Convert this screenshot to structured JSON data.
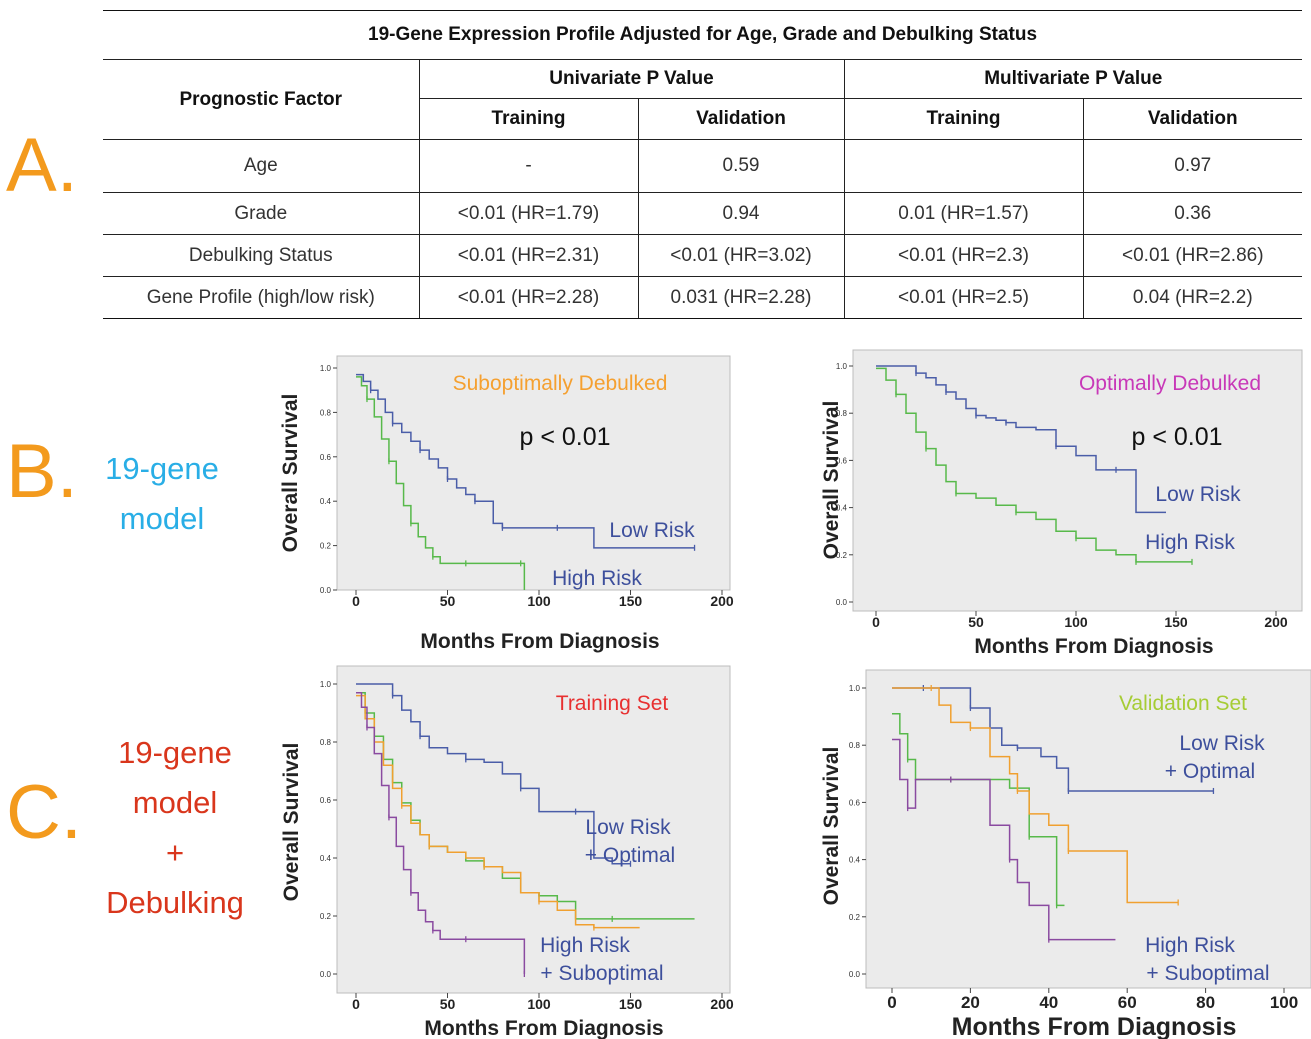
{
  "table": {
    "title": "19-Gene Expression Profile Adjusted for Age, Grade and Debulking Status",
    "factor_header": "Prognostic Factor",
    "group_headers": [
      "Univariate P Value",
      "Multivariate P Value"
    ],
    "sub_headers": [
      "Training",
      "Validation",
      "Training",
      "Validation"
    ],
    "rows": [
      {
        "factor": "Age",
        "values": [
          "-",
          "0.59",
          "",
          "0.97"
        ]
      },
      {
        "factor": "Grade",
        "values": [
          "<0.01 (HR=1.79)",
          "0.94",
          "0.01 (HR=1.57)",
          "0.36"
        ]
      },
      {
        "factor": "Debulking Status",
        "values": [
          "<0.01 (HR=2.31)",
          "<0.01 (HR=3.02)",
          "<0.01 (HR=2.3)",
          "<0.01 (HR=2.86)"
        ]
      },
      {
        "factor": "Gene Profile (high/low risk)",
        "values": [
          "<0.01 (HR=2.28)",
          "0.031 (HR=2.28)",
          "<0.01 (HR=2.5)",
          "0.04 (HR=2.2)"
        ]
      }
    ]
  },
  "labels": {
    "panel_a": "A.",
    "panel_b": "B.",
    "panel_c": "C.",
    "model_b": [
      "19-gene",
      "model"
    ],
    "model_c": [
      "19-",
      "gene",
      "model",
      "+",
      "Debulking"
    ]
  },
  "colors": {
    "panel_letter": "#f39a1d",
    "model_b": "#29aee6",
    "model_c": "#d9361c",
    "low_risk": "#4a5da8",
    "high_risk": "#57b94a",
    "low_opt": "#4a5da8",
    "high_opt": "#57b94a",
    "high_subopt": "#8a4aa0",
    "low_subopt": "#f0a030",
    "plot_bg": "#ebebeb"
  },
  "chart_data": [
    {
      "type": "line",
      "title": "Suboptimally Debulked",
      "title_color": "#f5a030",
      "annotation": "p < 0.01",
      "xlabel": "Months From Diagnosis",
      "ylabel": "Overall Survival",
      "xticks": [
        0,
        50,
        100,
        150,
        200
      ],
      "yticks": [
        "0.0",
        "0.2",
        "0.4",
        "0.6",
        "0.8",
        "1.0"
      ],
      "xlim": [
        0,
        200
      ],
      "ylim": [
        0,
        1
      ],
      "series": [
        {
          "name": "Low Risk",
          "color": "#4a5da8",
          "x": [
            0,
            4,
            8,
            12,
            16,
            20,
            25,
            30,
            35,
            40,
            45,
            50,
            55,
            60,
            65,
            70,
            75,
            80,
            90,
            100,
            110,
            130,
            150,
            185
          ],
          "y": [
            0.97,
            0.94,
            0.9,
            0.86,
            0.8,
            0.75,
            0.71,
            0.67,
            0.63,
            0.59,
            0.55,
            0.5,
            0.46,
            0.43,
            0.4,
            0.4,
            0.3,
            0.28,
            0.28,
            0.28,
            0.28,
            0.19,
            0.19,
            0.19
          ]
        },
        {
          "name": "High Risk",
          "color": "#57b94a",
          "x": [
            0,
            3,
            6,
            10,
            14,
            18,
            22,
            26,
            30,
            34,
            38,
            42,
            46,
            50,
            60,
            70,
            80,
            90,
            92
          ],
          "y": [
            0.96,
            0.92,
            0.86,
            0.78,
            0.68,
            0.58,
            0.48,
            0.38,
            0.3,
            0.24,
            0.19,
            0.15,
            0.12,
            0.12,
            0.12,
            0.12,
            0.12,
            0.12,
            0.0
          ]
        }
      ],
      "series_labels": [
        "Low Risk",
        "High Risk"
      ]
    },
    {
      "type": "line",
      "title": "Optimally Debulked",
      "title_color": "#c838b8",
      "annotation": "p < 0.01",
      "xlabel": "Months From Diagnosis",
      "ylabel": "Overall Survival",
      "xticks": [
        0,
        50,
        100,
        150,
        200
      ],
      "yticks": [
        "0.0",
        "0.2",
        "0.4",
        "0.6",
        "0.8",
        "1.0"
      ],
      "xlim": [
        0,
        200
      ],
      "ylim": [
        0,
        1
      ],
      "series": [
        {
          "name": "Low Risk",
          "color": "#4a5da8",
          "x": [
            0,
            10,
            20,
            25,
            30,
            35,
            40,
            45,
            50,
            55,
            60,
            65,
            70,
            80,
            90,
            100,
            110,
            120,
            130,
            145
          ],
          "y": [
            1.0,
            1.0,
            0.97,
            0.95,
            0.92,
            0.89,
            0.86,
            0.82,
            0.79,
            0.78,
            0.77,
            0.76,
            0.74,
            0.73,
            0.66,
            0.62,
            0.56,
            0.56,
            0.38,
            0.38
          ]
        },
        {
          "name": "High Risk",
          "color": "#57b94a",
          "x": [
            0,
            5,
            10,
            15,
            20,
            25,
            30,
            35,
            40,
            50,
            60,
            70,
            80,
            90,
            100,
            110,
            120,
            130,
            140,
            150,
            158
          ],
          "y": [
            0.99,
            0.94,
            0.88,
            0.8,
            0.72,
            0.65,
            0.58,
            0.51,
            0.46,
            0.44,
            0.41,
            0.38,
            0.35,
            0.3,
            0.27,
            0.22,
            0.2,
            0.17,
            0.17,
            0.17,
            0.17
          ]
        }
      ],
      "series_labels": [
        "Low Risk",
        "High Risk"
      ]
    },
    {
      "type": "line",
      "title": "Training Set",
      "title_color": "#e83030",
      "xlabel": "Months From Diagnosis",
      "ylabel": "Overall Survival",
      "xticks": [
        0,
        50,
        100,
        150,
        200
      ],
      "yticks": [
        "0.0",
        "0.2",
        "0.4",
        "0.6",
        "0.8",
        "1.0"
      ],
      "xlim": [
        0,
        200
      ],
      "ylim": [
        0,
        1
      ],
      "series": [
        {
          "name": "Low Risk + Optimal",
          "color": "#4a5da8",
          "x": [
            0,
            15,
            20,
            25,
            30,
            35,
            40,
            50,
            60,
            70,
            80,
            90,
            100,
            110,
            120,
            130,
            140,
            150
          ],
          "y": [
            1.0,
            1.0,
            0.96,
            0.91,
            0.87,
            0.82,
            0.78,
            0.76,
            0.74,
            0.73,
            0.69,
            0.64,
            0.56,
            0.56,
            0.56,
            0.4,
            0.38,
            0.38
          ]
        },
        {
          "name": "High Risk + Optimal",
          "color": "#57b94a",
          "x": [
            0,
            5,
            10,
            15,
            20,
            25,
            30,
            35,
            40,
            50,
            60,
            70,
            80,
            90,
            100,
            110,
            120,
            140,
            160,
            185
          ],
          "y": [
            0.97,
            0.9,
            0.82,
            0.74,
            0.66,
            0.59,
            0.53,
            0.48,
            0.44,
            0.42,
            0.39,
            0.37,
            0.33,
            0.28,
            0.27,
            0.25,
            0.19,
            0.19,
            0.19,
            0.19
          ]
        },
        {
          "name": "Low Risk + Suboptimal",
          "color": "#f0a030",
          "x": [
            0,
            5,
            10,
            15,
            20,
            25,
            30,
            35,
            40,
            50,
            60,
            70,
            80,
            90,
            100,
            110,
            120,
            130,
            140,
            155
          ],
          "y": [
            0.96,
            0.88,
            0.8,
            0.72,
            0.64,
            0.58,
            0.52,
            0.48,
            0.44,
            0.42,
            0.4,
            0.37,
            0.35,
            0.28,
            0.25,
            0.22,
            0.17,
            0.16,
            0.16,
            0.16
          ]
        },
        {
          "name": "High Risk + Suboptimal",
          "color": "#8a4aa0",
          "x": [
            0,
            3,
            6,
            10,
            14,
            18,
            22,
            26,
            30,
            34,
            38,
            42,
            46,
            50,
            60,
            80,
            90,
            92
          ],
          "y": [
            0.97,
            0.92,
            0.85,
            0.76,
            0.65,
            0.54,
            0.44,
            0.36,
            0.28,
            0.22,
            0.18,
            0.15,
            0.12,
            0.12,
            0.12,
            0.12,
            0.12,
            0.0
          ]
        }
      ],
      "series_labels": [
        "Low Risk",
        "+ Optimal",
        "High Risk",
        "+ Suboptimal"
      ]
    },
    {
      "type": "line",
      "title": "Validation Set",
      "title_color": "#a6cc35",
      "xlabel": "Months From Diagnosis",
      "ylabel": "Overall Survival",
      "xticks": [
        0,
        20,
        40,
        60,
        80,
        100
      ],
      "yticks": [
        "0.0",
        "0.2",
        "0.4",
        "0.6",
        "0.8",
        "1.0"
      ],
      "xlim": [
        0,
        100
      ],
      "ylim": [
        0,
        1
      ],
      "series": [
        {
          "name": "Low Risk + Optimal",
          "color": "#4a5da8",
          "x": [
            0,
            2,
            8,
            12,
            16,
            20,
            25,
            28,
            32,
            38,
            42,
            45,
            60,
            70,
            82
          ],
          "y": [
            1.0,
            1.0,
            1.0,
            1.0,
            1.0,
            0.93,
            0.86,
            0.8,
            0.79,
            0.76,
            0.72,
            0.64,
            0.64,
            0.64,
            0.64
          ]
        },
        {
          "name": "High Risk + Optimal",
          "color": "#57b94a",
          "x": [
            0,
            2,
            4,
            6,
            10,
            15,
            25,
            30,
            35,
            38,
            40,
            42,
            44
          ],
          "y": [
            0.91,
            0.84,
            0.75,
            0.68,
            0.68,
            0.68,
            0.68,
            0.65,
            0.48,
            0.48,
            0.48,
            0.24,
            0.24
          ]
        },
        {
          "name": "Low Risk + Suboptimal",
          "color": "#f0a030",
          "x": [
            0,
            5,
            10,
            12,
            15,
            20,
            25,
            30,
            32,
            35,
            40,
            45,
            55,
            60,
            73
          ],
          "y": [
            1.0,
            1.0,
            1.0,
            0.94,
            0.88,
            0.86,
            0.76,
            0.7,
            0.64,
            0.56,
            0.52,
            0.43,
            0.43,
            0.25,
            0.25
          ]
        },
        {
          "name": "High Risk + Suboptimal",
          "color": "#8a4aa0",
          "x": [
            0,
            2,
            4,
            6,
            10,
            15,
            20,
            25,
            30,
            32,
            35,
            40,
            45,
            57
          ],
          "y": [
            0.82,
            0.68,
            0.58,
            0.68,
            0.68,
            0.68,
            0.68,
            0.52,
            0.4,
            0.32,
            0.24,
            0.12,
            0.12,
            0.12
          ]
        }
      ],
      "series_labels": [
        "Low Risk",
        "+ Optimal",
        "High Risk",
        "+ Suboptimal"
      ]
    }
  ]
}
